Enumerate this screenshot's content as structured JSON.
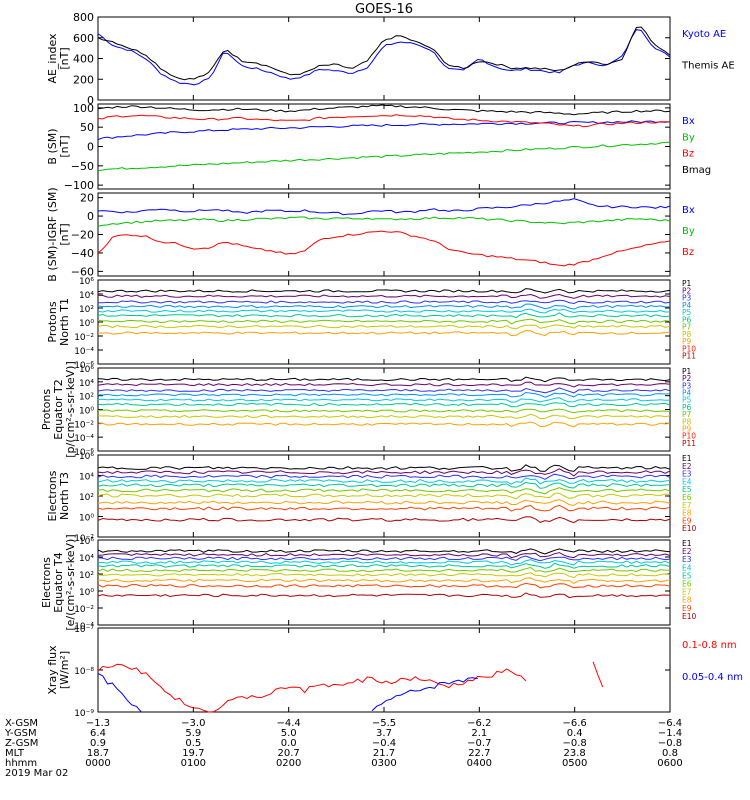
{
  "title": "GOES-16",
  "chart_data": [
    {
      "type": "line",
      "ylabel": "AE_index\n[nT]",
      "ylim": [
        0,
        800
      ],
      "yticks": [
        "0",
        "200",
        "400",
        "600",
        "800"
      ],
      "series": [
        {
          "name": "Kyoto AE",
          "color": "#0000ff",
          "values": [
            640,
            520,
            480,
            400,
            250,
            170,
            150,
            200,
            480,
            330,
            300,
            260,
            200,
            230,
            300,
            280,
            260,
            320,
            520,
            560,
            540,
            480,
            300,
            280,
            400,
            320,
            280,
            300,
            280,
            260,
            340,
            360,
            330,
            420,
            720,
            500,
            420
          ]
        },
        {
          "name": "Themis AE",
          "color": "#000000",
          "values": [
            600,
            560,
            500,
            440,
            300,
            210,
            200,
            260,
            500,
            380,
            360,
            310,
            240,
            260,
            330,
            340,
            300,
            380,
            580,
            620,
            560,
            500,
            340,
            300,
            380,
            350,
            310,
            310,
            300,
            280,
            340,
            380,
            340,
            400,
            740,
            540,
            440
          ]
        }
      ]
    },
    {
      "type": "line",
      "ylabel": "B (SM)\n[nT]",
      "ylim": [
        -110,
        110
      ],
      "yticks": [
        "−100",
        "−50",
        "0",
        "50",
        "100"
      ],
      "series": [
        {
          "name": "Bx",
          "color": "#0000ff",
          "values": [
            20,
            24,
            28,
            31,
            34,
            37,
            39,
            41,
            43,
            44,
            46,
            47,
            48,
            49,
            51,
            52,
            53,
            54,
            55,
            56,
            57,
            57,
            58,
            58,
            59,
            60,
            60,
            60,
            61,
            61,
            62,
            62,
            63,
            64,
            64,
            65,
            65
          ]
        },
        {
          "name": "By",
          "color": "#00c000",
          "values": [
            -60,
            -58,
            -56,
            -54,
            -52,
            -50,
            -48,
            -46,
            -44,
            -42,
            -40,
            -38,
            -36,
            -34,
            -33,
            -31,
            -29,
            -27,
            -26,
            -24,
            -22,
            -20,
            -18,
            -16,
            -14,
            -12,
            -10,
            -8,
            -6,
            -4,
            -2,
            0,
            2,
            4,
            6,
            8,
            10
          ]
        },
        {
          "name": "Bz",
          "color": "#ff0000",
          "values": [
            70,
            78,
            80,
            79,
            76,
            74,
            72,
            70,
            72,
            73,
            70,
            68,
            66,
            68,
            74,
            76,
            78,
            80,
            80,
            82,
            80,
            78,
            72,
            70,
            68,
            66,
            64,
            62,
            60,
            56,
            52,
            55,
            58,
            60,
            62,
            63,
            62
          ]
        },
        {
          "name": "Bmag",
          "color": "#000000",
          "values": [
            98,
            102,
            104,
            103,
            100,
            97,
            95,
            95,
            96,
            97,
            95,
            93,
            92,
            94,
            98,
            100,
            102,
            104,
            105,
            104,
            102,
            100,
            96,
            94,
            92,
            91,
            90,
            89,
            88,
            86,
            84,
            86,
            88,
            90,
            92,
            92,
            92
          ]
        }
      ]
    },
    {
      "type": "line",
      "ylabel": "B (SM)-IGRF (SM)\n[nT]",
      "ylim": [
        -65,
        25
      ],
      "yticks": [
        "−60",
        "−40",
        "−20",
        "0",
        "20"
      ],
      "series": [
        {
          "name": "Bx",
          "color": "#0000ff",
          "values": [
            6,
            5,
            4,
            6,
            8,
            6,
            5,
            7,
            6,
            3,
            5,
            6,
            5,
            6,
            4,
            3,
            2,
            5,
            6,
            4,
            5,
            8,
            5,
            6,
            8,
            9,
            10,
            12,
            14,
            16,
            18,
            12,
            10,
            10,
            10,
            9,
            10
          ]
        },
        {
          "name": "By",
          "color": "#00c000",
          "values": [
            -10,
            -8,
            -7,
            -6,
            -5,
            -5,
            -4,
            -4,
            -5,
            -4,
            -3,
            -3,
            -2,
            -2,
            -3,
            -2,
            -3,
            -2,
            -4,
            -3,
            -3,
            -2,
            -2,
            -2,
            -3,
            -4,
            -5,
            -6,
            -7,
            -8,
            -7,
            -6,
            -5,
            -4,
            -3,
            -4,
            -5
          ]
        },
        {
          "name": "Bz",
          "color": "#ff0000",
          "values": [
            -40,
            -22,
            -20,
            -22,
            -28,
            -30,
            -35,
            -34,
            -28,
            -32,
            -36,
            -38,
            -42,
            -38,
            -25,
            -22,
            -20,
            -18,
            -16,
            -18,
            -22,
            -26,
            -35,
            -40,
            -42,
            -44,
            -46,
            -48,
            -50,
            -54,
            -52,
            -48,
            -42,
            -38,
            -34,
            -30,
            -28
          ]
        }
      ]
    },
    {
      "type": "line",
      "ylabel": "Protons\nNorth T1",
      "ylog": true,
      "ylim": [
        -7,
        6
      ],
      "yticks": [
        "10⁶",
        "10⁴",
        "10²",
        "10⁰",
        "10⁻²",
        "10⁻⁴",
        "10⁻⁶"
      ],
      "series": [
        {
          "name": "P1",
          "color": "#000000",
          "level": 4.3
        },
        {
          "name": "P2",
          "color": "#6a006a",
          "level": 3.5
        },
        {
          "name": "P3",
          "color": "#3030ff",
          "level": 2.6
        },
        {
          "name": "P4",
          "color": "#0090ff",
          "level": 1.9
        },
        {
          "name": "P5",
          "color": "#00c8e0",
          "level": 1.2
        },
        {
          "name": "P6",
          "color": "#00c890",
          "level": 0.5
        },
        {
          "name": "P7",
          "color": "#70c800",
          "level": -0.4
        },
        {
          "name": "P8",
          "color": "#c8c800",
          "level": -1.2
        },
        {
          "name": "P9",
          "color": "#ffa000",
          "level": -2.2
        },
        {
          "name": "P10",
          "color": "#ff2000",
          "level": null
        },
        {
          "name": "P11",
          "color": "#b00000",
          "level": null
        }
      ]
    },
    {
      "type": "line",
      "ylabel": "Protons\nEquator T2\n[p/(cm²-s-sr-keV)]",
      "ylog": true,
      "ylim": [
        -7,
        6
      ],
      "yticks": [
        "10⁶",
        "10⁴",
        "10²",
        "10⁰",
        "10⁻²",
        "10⁻⁴",
        "10⁻⁶"
      ],
      "series": [
        {
          "name": "P1",
          "color": "#000000",
          "level": 4.2
        },
        {
          "name": "P2",
          "color": "#6a006a",
          "level": 3.4
        },
        {
          "name": "P3",
          "color": "#3030ff",
          "level": 2.5
        },
        {
          "name": "P4",
          "color": "#0090ff",
          "level": 1.8
        },
        {
          "name": "P5",
          "color": "#00c8e0",
          "level": 1.0
        },
        {
          "name": "P6",
          "color": "#00c890",
          "level": 0.3
        },
        {
          "name": "P7",
          "color": "#70c800",
          "level": -0.7
        },
        {
          "name": "P8",
          "color": "#c8c800",
          "level": -1.6
        },
        {
          "name": "P9",
          "color": "#ffa000",
          "level": -2.8
        },
        {
          "name": "P10",
          "color": "#ff2000",
          "level": null
        },
        {
          "name": "P11",
          "color": "#b00000",
          "level": null
        }
      ]
    },
    {
      "type": "line",
      "ylabel": "Electrons\nNorth T3",
      "ylog": true,
      "ylim": [
        -3,
        6.5
      ],
      "yticks": [
        "10⁶",
        "10⁴",
        "10²",
        "10⁰",
        "10⁻²"
      ],
      "series": [
        {
          "name": "E1",
          "color": "#000000",
          "level": 5.0
        },
        {
          "name": "E2",
          "color": "#6a006a",
          "level": 4.5
        },
        {
          "name": "E3",
          "color": "#3030ff",
          "level": 4.0
        },
        {
          "name": "E4",
          "color": "#00c8e0",
          "level": 3.5
        },
        {
          "name": "E5",
          "color": "#00c890",
          "level": 3.0
        },
        {
          "name": "E6",
          "color": "#70c800",
          "level": 2.4
        },
        {
          "name": "E7",
          "color": "#c8c800",
          "level": 1.8
        },
        {
          "name": "E8",
          "color": "#ffa000",
          "level": 1.0
        },
        {
          "name": "E9",
          "color": "#ff4000",
          "level": 0.3
        },
        {
          "name": "E10",
          "color": "#b00000",
          "level": -1.0
        }
      ]
    },
    {
      "type": "line",
      "ylabel": "Electrons\nEquator T4\n[e/(cm²-s-sr-keV)]",
      "ylog": true,
      "ylim": [
        -5,
        6.5
      ],
      "yticks": [
        "10⁶",
        "10⁴",
        "10²",
        "10⁰",
        "10⁻²",
        "10⁻⁴"
      ],
      "series": [
        {
          "name": "E1",
          "color": "#000000",
          "level": 5.0
        },
        {
          "name": "E2",
          "color": "#6a006a",
          "level": 4.5
        },
        {
          "name": "E3",
          "color": "#3030ff",
          "level": 4.0
        },
        {
          "name": "E4",
          "color": "#00c8e0",
          "level": 3.5
        },
        {
          "name": "E5",
          "color": "#00c890",
          "level": 3.0
        },
        {
          "name": "E6",
          "color": "#70c800",
          "level": 2.4
        },
        {
          "name": "E7",
          "color": "#c8c800",
          "level": 1.8
        },
        {
          "name": "E8",
          "color": "#ffa000",
          "level": 1.0
        },
        {
          "name": "E9",
          "color": "#ff4000",
          "level": 0.3
        },
        {
          "name": "E10",
          "color": "#b00000",
          "level": -1.0
        }
      ]
    },
    {
      "type": "line",
      "ylabel": "Xray flux\n[W/m²]",
      "ylog": true,
      "ylim": [
        -9,
        -7
      ],
      "yticks": [
        "10⁻⁷",
        "10⁻⁸",
        "10⁻⁹"
      ],
      "series": [
        {
          "name": "0.1-0.8 nm",
          "color": "#ff0000",
          "values": [
            -8.0,
            -7.85,
            -7.9,
            -8.1,
            -8.4,
            -8.7,
            -8.9,
            -9.0,
            -8.8,
            -8.6,
            -8.7,
            -8.5,
            -8.4,
            -8.5,
            -8.3,
            -8.4,
            -8.3,
            -8.2,
            -8.3,
            -8.25,
            -8.2,
            -8.3,
            -8.4,
            -8.3,
            -8.2,
            -8.1,
            -8.0,
            -8.3,
            null,
            null,
            null,
            -7.6,
            -8.7,
            null,
            null,
            null,
            null
          ]
        },
        {
          "name": "0.05-0.4 nm",
          "color": "#0000ff",
          "values": [
            -8.1,
            -8.4,
            -8.8,
            -9.0,
            null,
            null,
            null,
            null,
            null,
            null,
            null,
            null,
            null,
            null,
            null,
            null,
            null,
            -9.0,
            -8.8,
            -8.6,
            -8.5,
            -8.4,
            -8.3,
            -8.25,
            -8.2,
            null,
            null,
            null,
            null,
            null,
            null,
            null,
            null,
            null,
            null,
            null,
            null
          ]
        }
      ]
    }
  ],
  "xaxis": {
    "row_labels": [
      "X-GSM",
      "Y-GSM",
      "Z-GSM",
      "MLT",
      "hhmm"
    ],
    "date": "2019 Mar 02",
    "columns": [
      [
        "−1.3",
        "6.4",
        "0.9",
        "18.7",
        "0000"
      ],
      [
        "−3.0",
        "5.9",
        "0.5",
        "19.7",
        "0100"
      ],
      [
        "−4.4",
        "5.0",
        "0.0",
        "20.7",
        "0200"
      ],
      [
        "−5.5",
        "3.7",
        "−0.4",
        "21.7",
        "0300"
      ],
      [
        "−6.2",
        "2.1",
        "−0.7",
        "22.7",
        "0400"
      ],
      [
        "−6.6",
        "0.4",
        "−0.8",
        "23.8",
        "0500"
      ],
      [
        "−6.4",
        "−1.4",
        "−0.8",
        "0.8",
        "0600"
      ]
    ]
  }
}
